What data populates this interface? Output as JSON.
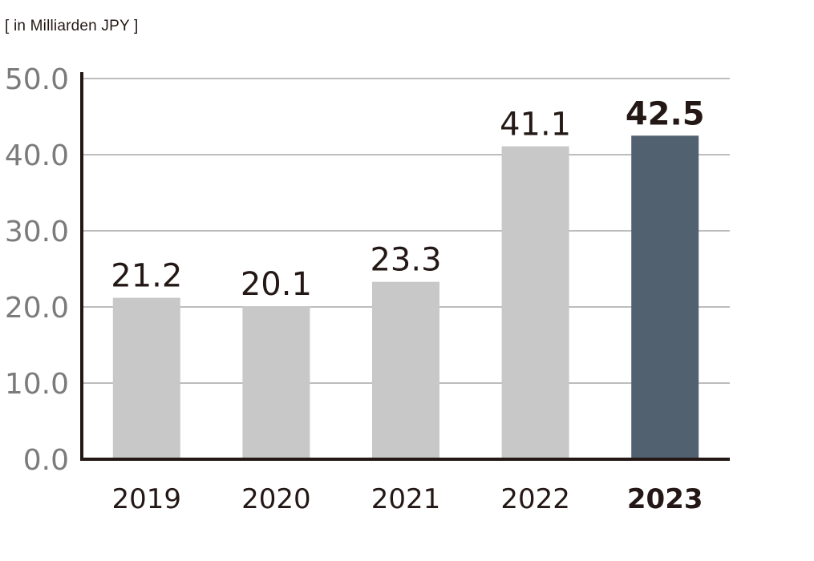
{
  "unit_label": "[ in Milliarden JPY ]",
  "chart_data": {
    "type": "bar",
    "title": "",
    "xlabel": "",
    "ylabel": "[ in Milliarden JPY ]",
    "categories": [
      "2019",
      "2020",
      "2021",
      "2022",
      "2023"
    ],
    "values": [
      21.2,
      20.1,
      23.3,
      41.1,
      42.5
    ],
    "value_labels": [
      "21.2",
      "20.1",
      "23.3",
      "41.1",
      "42.5"
    ],
    "ylim": [
      0,
      50
    ],
    "yticks": [
      "0.0",
      "10.0",
      "20.0",
      "30.0",
      "40.0",
      "50.0"
    ],
    "grid": true,
    "highlight_index": 4,
    "colors": {
      "bar": "#c8c8c8",
      "highlight": "#526170",
      "grid": "#a7a7a7",
      "axis": "#231815",
      "tick_text": "#7b7b7b",
      "label_text": "#231815"
    }
  }
}
